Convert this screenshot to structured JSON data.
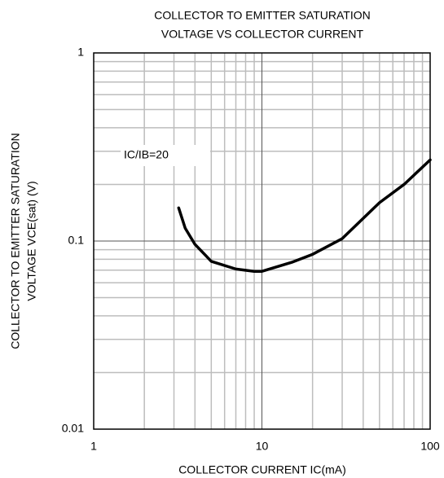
{
  "chart_data": {
    "type": "line",
    "title": [
      "COLLECTOR TO EMITTER SATURATION",
      "VOLTAGE VS COLLECTOR CURRENT"
    ],
    "xlabel": "COLLECTOR CURRENT  IC(mA)",
    "ylabel": [
      "COLLECTOR TO EMITTER SATURATION",
      "VOLTAGE VCE(sat) (V)"
    ],
    "annotation": "IC/IB=20",
    "x": [
      3.2,
      3.5,
      4,
      5,
      7,
      9,
      10,
      15,
      20,
      30,
      50,
      70,
      100
    ],
    "series": [
      {
        "color": "#000000",
        "values": [
          0.15,
          0.117,
          0.096,
          0.078,
          0.071,
          0.069,
          0.069,
          0.077,
          0.085,
          0.103,
          0.16,
          0.2,
          0.27
        ]
      }
    ],
    "xlim": [
      1,
      100
    ],
    "ylim": [
      0.01,
      1
    ],
    "xticks": [
      1,
      10,
      100
    ],
    "yticks": [
      0.01,
      0.1,
      1
    ],
    "xscale": "log",
    "yscale": "log",
    "grid": true
  }
}
